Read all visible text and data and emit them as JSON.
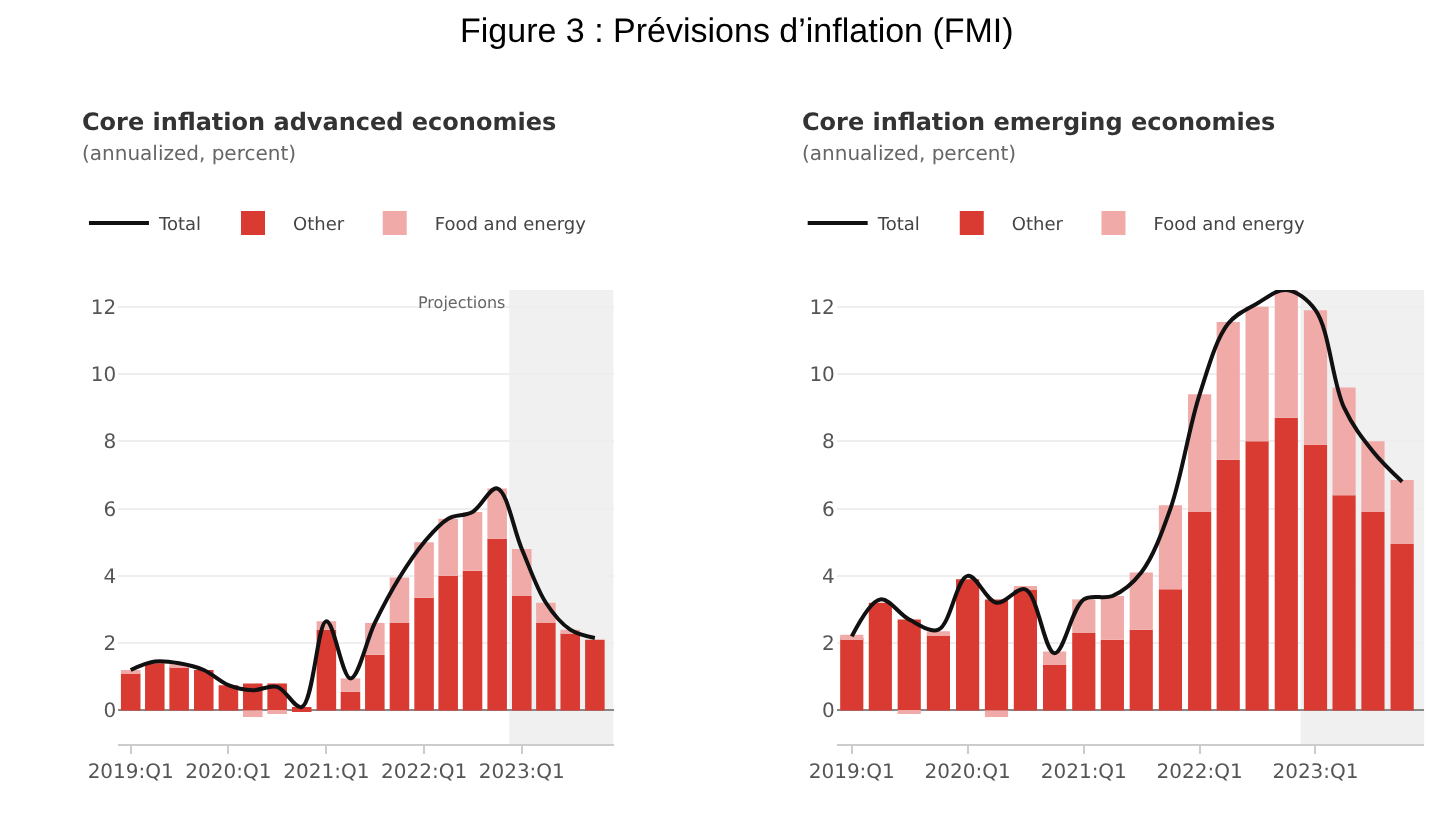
{
  "chart_data": [
    {
      "type": "bar",
      "title": "Core inflation advanced economies",
      "subtitle": "(annualized, percent)",
      "stacked": true,
      "annotations": [
        "Figure 3 : Prévisions d’inflation (FMI)"
      ],
      "x": [
        "2019-01",
        "2019-04",
        "2019-07",
        "2019-10",
        "2020-01",
        "2020-04",
        "2020-07",
        "2020-10",
        "2021-01",
        "2021-04",
        "2021-07",
        "2021-10",
        "2022-01",
        "2022-04",
        "2022-07",
        "2022-10",
        "2023-01",
        "2023-04",
        "2023-07",
        "2023-10"
      ],
      "series": [
        {
          "name": "Total",
          "type": "line",
          "color": "#111111",
          "values": [
            1.2,
            1.45,
            1.4,
            1.2,
            0.75,
            0.6,
            0.7,
            0.1,
            2.65,
            0.95,
            2.6,
            3.95,
            5.0,
            5.7,
            5.9,
            6.6,
            4.8,
            3.2,
            2.4,
            2.15
          ]
        },
        {
          "name": "Other",
          "color": "#d93b33",
          "values": [
            1.1,
            1.4,
            1.3,
            1.2,
            0.75,
            0.8,
            0.8,
            0.1,
            2.4,
            0.55,
            1.65,
            2.6,
            3.35,
            4.0,
            4.15,
            5.1,
            3.4,
            2.6,
            2.3,
            2.1
          ]
        },
        {
          "name": "Food and energy",
          "color": "#f0aaa8",
          "values": [
            0.1,
            null,
            0.1,
            0.0,
            0.0,
            -0.2,
            -0.1,
            0.0,
            0.25,
            0.4,
            0.95,
            1.35,
            1.65,
            1.7,
            1.75,
            1.5,
            1.4,
            0.6,
            0.1,
            null
          ]
        }
      ],
      "xlim": [
        "2018-11-15",
        "2023-12-10"
      ],
      "xticks": [
        {
          "value": "2019-01",
          "label": "2019:Q1"
        },
        {
          "value": "2020-01",
          "label": "2020:Q1"
        },
        {
          "value": "2021-01",
          "label": "2021:Q1"
        },
        {
          "value": "2022-01",
          "label": "2022:Q1"
        },
        {
          "value": "2023-01",
          "label": "2023:Q1"
        }
      ],
      "ylim": [
        -1,
        12.5
      ],
      "yticks": [
        0,
        2,
        4,
        6,
        8,
        10,
        12
      ],
      "grid": "y",
      "legend": "top left",
      "bands": [
        {
          "axis": "x",
          "from": "2022-11-15",
          "to": "2023-12-10",
          "label": "Projections",
          "color": "#f0f0f0"
        }
      ]
    },
    {
      "type": "bar",
      "title": "Core inflation emerging economies",
      "subtitle": "(annualized, percent)",
      "stacked": true,
      "x": [
        "2019-01",
        "2019-04",
        "2019-07",
        "2019-10",
        "2020-01",
        "2020-04",
        "2020-07",
        "2020-10",
        "2021-01",
        "2021-04",
        "2021-07",
        "2021-10",
        "2022-01",
        "2022-04",
        "2022-07",
        "2022-10",
        "2023-01",
        "2023-04",
        "2023-07",
        "2023-10"
      ],
      "series": [
        {
          "name": "Total",
          "type": "line",
          "color": "#111111",
          "values": [
            2.2,
            3.3,
            2.7,
            2.4,
            4.0,
            3.2,
            3.6,
            1.7,
            3.3,
            3.4,
            4.1,
            6.0,
            9.4,
            11.5,
            12.1,
            12.5,
            11.9,
            9.0,
            7.7,
            6.8
          ]
        },
        {
          "name": "Other",
          "color": "#d93b33",
          "values": [
            2.15,
            3.2,
            2.7,
            2.25,
            3.9,
            3.3,
            3.6,
            1.35,
            2.3,
            2.1,
            2.4,
            3.6,
            5.9,
            7.45,
            8.0,
            8.7,
            7.9,
            6.4,
            5.9,
            4.95
          ]
        },
        {
          "name": "Food and energy",
          "color": "#f0aaa8",
          "values": [
            0.1,
            null,
            -0.1,
            0.1,
            null,
            -0.2,
            0.05,
            0.4,
            1.0,
            1.3,
            1.7,
            2.5,
            3.5,
            4.1,
            4.0,
            3.8,
            4.0,
            3.2,
            2.1,
            1.9
          ]
        }
      ],
      "xlim": [
        "2018-11-15",
        "2023-12-10"
      ],
      "xticks": [
        {
          "value": "2019-01",
          "label": "2019:Q1"
        },
        {
          "value": "2020-01",
          "label": "2020:Q1"
        },
        {
          "value": "2021-01",
          "label": "2021:Q1"
        },
        {
          "value": "2022-01",
          "label": "2022:Q1"
        },
        {
          "value": "2023-01",
          "label": "2023:Q1"
        }
      ],
      "ylim": [
        -1,
        12.5
      ],
      "yticks": [
        0,
        2,
        4,
        6,
        8,
        10,
        12
      ],
      "grid": "y",
      "legend": "top left",
      "bands": [
        {
          "axis": "x",
          "from": "2022-11-15",
          "to": "2023-12-10",
          "color": "#f0f0f0"
        }
      ]
    }
  ]
}
